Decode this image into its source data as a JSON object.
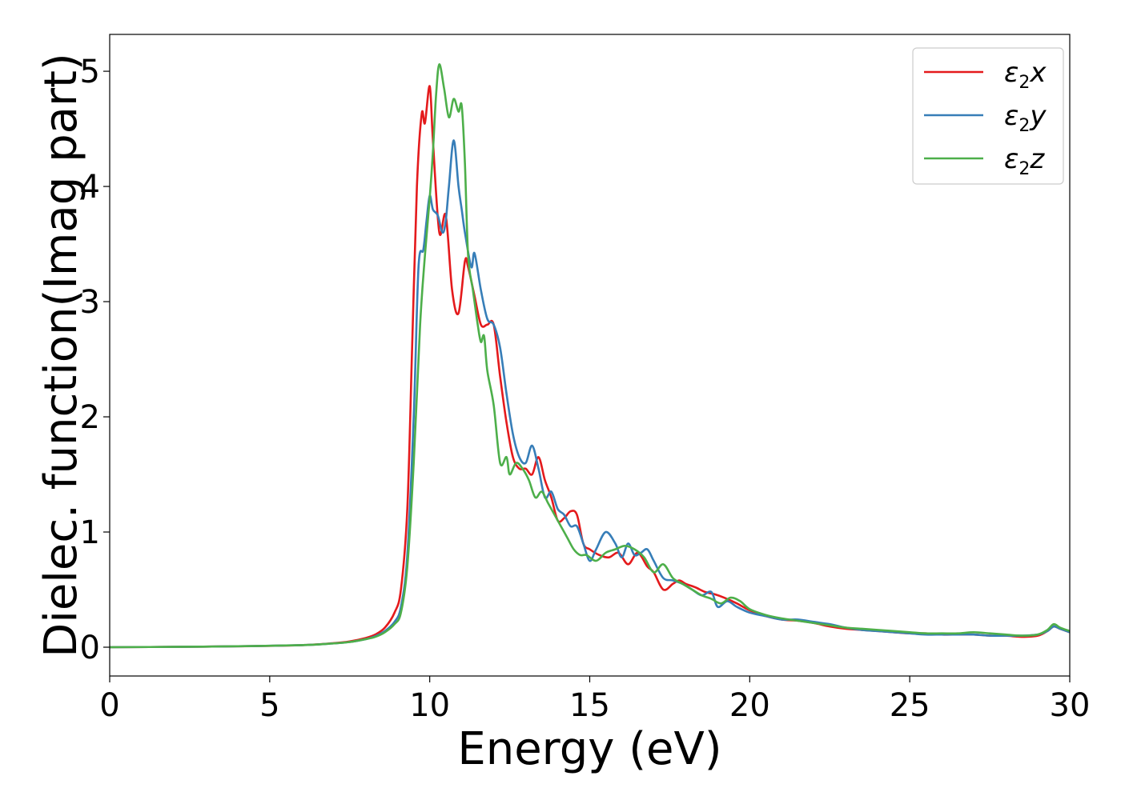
{
  "chart_data": {
    "type": "line",
    "xlabel": "Energy (eV)",
    "ylabel": "Dielec. function(Imag part)",
    "xlim": [
      0,
      30
    ],
    "ylim": [
      -0.25,
      5.32
    ],
    "xticks": [
      0,
      5,
      10,
      15,
      20,
      25,
      30
    ],
    "xtick_labels": [
      "0",
      "5",
      "10",
      "15",
      "20",
      "25",
      "30"
    ],
    "yticks": [
      0,
      1,
      2,
      3,
      4,
      5
    ],
    "ytick_labels": [
      "0",
      "1",
      "2",
      "3",
      "4",
      "5"
    ],
    "grid": false,
    "legend_position": "top-right",
    "series": [
      {
        "name": "ε2x",
        "symbol": "ε",
        "subscript": "2",
        "component": "x",
        "color": "#e41a1c",
        "x": [
          0,
          2,
          4,
          6,
          7,
          7.5,
          8,
          8.3,
          8.6,
          8.9,
          9.1,
          9.3,
          9.45,
          9.6,
          9.75,
          9.85,
          10.0,
          10.1,
          10.3,
          10.5,
          10.7,
          10.9,
          11.1,
          11.2,
          11.4,
          11.6,
          11.8,
          12.0,
          12.2,
          12.4,
          12.6,
          12.8,
          13.0,
          13.2,
          13.4,
          13.6,
          13.8,
          14.0,
          14.2,
          14.4,
          14.6,
          14.8,
          15.0,
          15.3,
          15.6,
          15.9,
          16.2,
          16.5,
          16.8,
          17.0,
          17.3,
          17.6,
          17.8,
          18.0,
          18.3,
          18.6,
          18.9,
          19.2,
          19.6,
          20.0,
          20.5,
          21.0,
          21.5,
          22.0,
          22.5,
          23.0,
          23.5,
          24.0,
          24.5,
          25.0,
          25.5,
          26.0,
          26.5,
          27.0,
          27.5,
          28.0,
          28.5,
          29.0,
          29.3,
          29.5,
          29.7,
          30.0
        ],
        "values": [
          0,
          0.003,
          0.008,
          0.018,
          0.035,
          0.05,
          0.08,
          0.11,
          0.17,
          0.3,
          0.5,
          1.2,
          2.6,
          4.0,
          4.63,
          4.55,
          4.87,
          4.4,
          3.6,
          3.75,
          3.1,
          2.9,
          3.35,
          3.3,
          3.05,
          2.8,
          2.8,
          2.8,
          2.35,
          1.95,
          1.65,
          1.55,
          1.55,
          1.5,
          1.65,
          1.45,
          1.3,
          1.1,
          1.12,
          1.18,
          1.15,
          0.9,
          0.85,
          0.8,
          0.78,
          0.82,
          0.72,
          0.82,
          0.7,
          0.65,
          0.5,
          0.55,
          0.58,
          0.55,
          0.52,
          0.48,
          0.46,
          0.43,
          0.38,
          0.32,
          0.27,
          0.24,
          0.23,
          0.21,
          0.18,
          0.16,
          0.15,
          0.14,
          0.13,
          0.12,
          0.12,
          0.11,
          0.11,
          0.11,
          0.1,
          0.1,
          0.09,
          0.1,
          0.14,
          0.18,
          0.16,
          0.13
        ]
      },
      {
        "name": "ε2y",
        "symbol": "ε",
        "subscript": "2",
        "component": "y",
        "color": "#377eb8",
        "x": [
          0,
          2,
          4,
          6,
          7,
          7.5,
          8,
          8.3,
          8.6,
          8.9,
          9.1,
          9.3,
          9.5,
          9.65,
          9.8,
          9.9,
          10.0,
          10.1,
          10.25,
          10.4,
          10.5,
          10.6,
          10.75,
          10.9,
          11.0,
          11.1,
          11.3,
          11.4,
          11.6,
          11.8,
          12.0,
          12.2,
          12.4,
          12.6,
          12.8,
          13.0,
          13.2,
          13.4,
          13.6,
          13.8,
          14.0,
          14.2,
          14.4,
          14.6,
          14.8,
          15.0,
          15.2,
          15.5,
          15.8,
          16.0,
          16.2,
          16.4,
          16.6,
          16.8,
          17.0,
          17.3,
          17.6,
          17.9,
          18.2,
          18.5,
          18.8,
          19.0,
          19.3,
          19.6,
          20.0,
          20.5,
          21.0,
          21.5,
          22.0,
          22.5,
          23.0,
          23.5,
          24.0,
          24.5,
          25.0,
          25.5,
          26.0,
          26.5,
          27.0,
          27.5,
          28.0,
          28.5,
          29.0,
          29.3,
          29.5,
          29.7,
          30.0
        ],
        "values": [
          0,
          0.003,
          0.008,
          0.018,
          0.033,
          0.045,
          0.07,
          0.095,
          0.14,
          0.22,
          0.35,
          0.8,
          2.0,
          3.3,
          3.45,
          3.7,
          3.92,
          3.8,
          3.75,
          3.6,
          3.7,
          4.0,
          4.4,
          4.0,
          3.8,
          3.6,
          3.3,
          3.42,
          3.1,
          2.85,
          2.8,
          2.6,
          2.2,
          1.85,
          1.65,
          1.6,
          1.75,
          1.55,
          1.3,
          1.35,
          1.2,
          1.15,
          1.05,
          1.05,
          0.9,
          0.75,
          0.85,
          1.0,
          0.9,
          0.78,
          0.9,
          0.8,
          0.82,
          0.85,
          0.75,
          0.6,
          0.58,
          0.55,
          0.5,
          0.45,
          0.48,
          0.35,
          0.4,
          0.35,
          0.3,
          0.27,
          0.24,
          0.24,
          0.22,
          0.2,
          0.17,
          0.15,
          0.14,
          0.13,
          0.12,
          0.11,
          0.11,
          0.11,
          0.11,
          0.1,
          0.1,
          0.1,
          0.11,
          0.14,
          0.18,
          0.16,
          0.13
        ]
      },
      {
        "name": "ε2z",
        "symbol": "ε",
        "subscript": "2",
        "component": "z",
        "color": "#4daf4a",
        "x": [
          0,
          2,
          4,
          6,
          7,
          7.5,
          8,
          8.3,
          8.6,
          8.9,
          9.1,
          9.3,
          9.5,
          9.7,
          9.85,
          10.0,
          10.1,
          10.2,
          10.3,
          10.45,
          10.6,
          10.75,
          10.9,
          11.0,
          11.1,
          11.2,
          11.35,
          11.5,
          11.6,
          11.7,
          11.8,
          12.0,
          12.2,
          12.4,
          12.5,
          12.7,
          12.9,
          13.1,
          13.3,
          13.5,
          13.7,
          13.9,
          14.1,
          14.3,
          14.5,
          14.7,
          14.9,
          15.2,
          15.5,
          15.8,
          16.1,
          16.4,
          16.7,
          17.0,
          17.3,
          17.6,
          17.9,
          18.2,
          18.5,
          18.8,
          19.1,
          19.4,
          19.7,
          20.0,
          20.5,
          21.0,
          21.5,
          22.0,
          22.5,
          23.0,
          23.5,
          24.0,
          24.5,
          25.0,
          25.5,
          26.0,
          26.5,
          27.0,
          27.5,
          28.0,
          28.5,
          29.0,
          29.3,
          29.5,
          29.7,
          30.0
        ],
        "values": [
          0,
          0.003,
          0.008,
          0.018,
          0.033,
          0.045,
          0.07,
          0.09,
          0.13,
          0.2,
          0.3,
          0.7,
          1.6,
          2.8,
          3.4,
          3.9,
          4.3,
          4.8,
          5.06,
          4.85,
          4.6,
          4.76,
          4.65,
          4.7,
          4.2,
          3.4,
          3.1,
          2.8,
          2.65,
          2.7,
          2.4,
          2.1,
          1.6,
          1.65,
          1.5,
          1.6,
          1.55,
          1.45,
          1.3,
          1.35,
          1.25,
          1.15,
          1.05,
          0.95,
          0.85,
          0.8,
          0.8,
          0.75,
          0.82,
          0.85,
          0.88,
          0.85,
          0.78,
          0.65,
          0.72,
          0.6,
          0.55,
          0.5,
          0.45,
          0.42,
          0.38,
          0.43,
          0.4,
          0.33,
          0.28,
          0.25,
          0.23,
          0.21,
          0.19,
          0.17,
          0.16,
          0.15,
          0.14,
          0.13,
          0.12,
          0.12,
          0.12,
          0.13,
          0.12,
          0.11,
          0.1,
          0.11,
          0.15,
          0.2,
          0.17,
          0.14
        ]
      }
    ]
  }
}
